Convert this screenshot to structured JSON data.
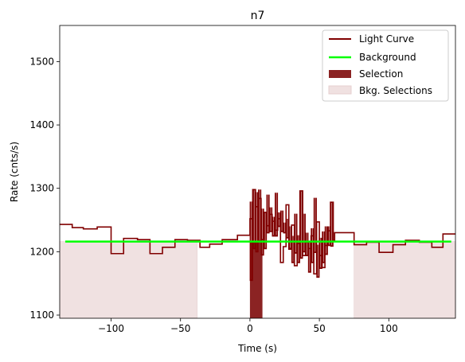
{
  "chart_data": {
    "type": "line",
    "title": "n7",
    "xlabel": "Time (s)",
    "ylabel": "Rate (cnts/s)",
    "xlim": [
      -137,
      148
    ],
    "ylim": [
      1095,
      1557
    ],
    "xticks": [
      -100,
      -50,
      0,
      50,
      100
    ],
    "xtick_labels": [
      "−100",
      "−50",
      "0",
      "50",
      "100"
    ],
    "yticks": [
      1100,
      1200,
      1300,
      1400,
      1500
    ],
    "ytick_labels": [
      "1100",
      "1200",
      "1300",
      "1400",
      "1500"
    ],
    "grid": false,
    "legend_position": "upper right",
    "legend": [
      {
        "label": "Light Curve",
        "kind": "line",
        "color": "#800000"
      },
      {
        "label": "Background",
        "kind": "line",
        "color": "#00ff00"
      },
      {
        "label": "Selection",
        "kind": "patch",
        "color": "#8b2323"
      },
      {
        "label": "Bkg. Selections",
        "kind": "patch",
        "color": "#f0e1e1"
      }
    ],
    "light_curve": {
      "name": "Light Curve",
      "color": "#800000",
      "edges": [
        -137,
        -128,
        -120,
        -110,
        -100,
        -91,
        -81,
        -72,
        -63,
        -54,
        -45,
        -36,
        -29,
        -20,
        -9,
        0,
        2,
        4,
        6,
        8,
        10,
        12,
        14,
        16,
        18,
        20,
        22,
        24,
        26,
        28,
        30,
        32,
        34,
        36,
        38,
        40,
        42,
        44,
        46,
        48,
        50,
        52,
        54,
        56,
        58,
        60,
        61,
        75,
        84,
        93,
        103,
        112,
        122,
        131,
        139,
        148
      ],
      "values": [
        1243,
        1238,
        1236,
        1239,
        1197,
        1221,
        1219,
        1197,
        1207,
        1219,
        1218,
        1207,
        1212,
        1219,
        1226,
        1252,
        1298,
        1271,
        1284,
        1219,
        1262,
        1241,
        1259,
        1248,
        1234,
        1252,
        1183,
        1208,
        1274,
        1204,
        1242,
        1178,
        1213,
        1296,
        1194,
        1215,
        1205,
        1225,
        1165,
        1247,
        1194,
        1175,
        1210,
        1233,
        1278,
        1218,
        1230,
        1211,
        1215,
        1199,
        1211,
        1218,
        1215,
        1207,
        1228
      ]
    },
    "selection_band_values": [
      {
        "x": [
          0,
          2
        ],
        "high": 1279,
        "low": 1155
      },
      {
        "x": [
          2,
          4
        ],
        "high": 1298,
        "low": 1205
      },
      {
        "x": [
          4,
          6
        ],
        "high": 1294,
        "low": 1200
      },
      {
        "x": [
          6,
          8
        ],
        "high": 1298,
        "low": 1217
      },
      {
        "x": [
          8,
          10
        ],
        "high": 1268,
        "low": 1195
      },
      {
        "x": [
          10,
          12
        ],
        "high": 1262,
        "low": 1205
      },
      {
        "x": [
          12,
          14
        ],
        "high": 1290,
        "low": 1230
      },
      {
        "x": [
          14,
          16
        ],
        "high": 1270,
        "low": 1232
      },
      {
        "x": [
          16,
          18
        ],
        "high": 1255,
        "low": 1225
      },
      {
        "x": [
          18,
          20
        ],
        "high": 1293,
        "low": 1225
      },
      {
        "x": [
          20,
          22
        ],
        "high": 1262,
        "low": 1240
      },
      {
        "x": [
          22,
          24
        ],
        "high": 1265,
        "low": 1232
      },
      {
        "x": [
          24,
          26
        ],
        "high": 1246,
        "low": 1230
      },
      {
        "x": [
          26,
          28
        ],
        "high": 1252,
        "low": 1222
      },
      {
        "x": [
          28,
          30
        ],
        "high": 1240,
        "low": 1205
      },
      {
        "x": [
          30,
          32
        ],
        "high": 1225,
        "low": 1183
      },
      {
        "x": [
          32,
          34
        ],
        "high": 1260,
        "low": 1198
      },
      {
        "x": [
          34,
          36
        ],
        "high": 1226,
        "low": 1183
      },
      {
        "x": [
          36,
          38
        ],
        "high": 1296,
        "low": 1190
      },
      {
        "x": [
          38,
          40
        ],
        "high": 1260,
        "low": 1200
      },
      {
        "x": [
          40,
          42
        ],
        "high": 1230,
        "low": 1194
      },
      {
        "x": [
          42,
          44
        ],
        "high": 1215,
        "low": 1168
      },
      {
        "x": [
          44,
          46
        ],
        "high": 1237,
        "low": 1183
      },
      {
        "x": [
          46,
          48
        ],
        "high": 1285,
        "low": 1199
      },
      {
        "x": [
          48,
          50
        ],
        "high": 1211,
        "low": 1160
      },
      {
        "x": [
          50,
          52
        ],
        "high": 1222,
        "low": 1174
      },
      {
        "x": [
          52,
          54
        ],
        "high": 1232,
        "low": 1183
      },
      {
        "x": [
          54,
          56
        ],
        "high": 1240,
        "low": 1196
      },
      {
        "x": [
          56,
          58
        ],
        "high": 1240,
        "low": 1210
      },
      {
        "x": [
          58,
          60
        ],
        "high": 1278,
        "low": 1209
      }
    ],
    "background": {
      "name": "Background",
      "color": "#00ff00",
      "x": [
        -133,
        145
      ],
      "value": 1216
    },
    "selection": {
      "name": "Selection",
      "color": "#8b2323",
      "x": [
        0,
        9
      ],
      "ymin": 1095,
      "ymax": 1216
    },
    "bkg_selections": [
      {
        "name": "Bkg. Selections",
        "color": "#f0e1e1",
        "x": [
          -137,
          -38
        ],
        "ymin": 1095,
        "ymax": 1216
      },
      {
        "name": "Bkg. Selections",
        "color": "#f0e1e1",
        "x": [
          75,
          148
        ],
        "ymin": 1095,
        "ymax": 1216
      }
    ]
  }
}
